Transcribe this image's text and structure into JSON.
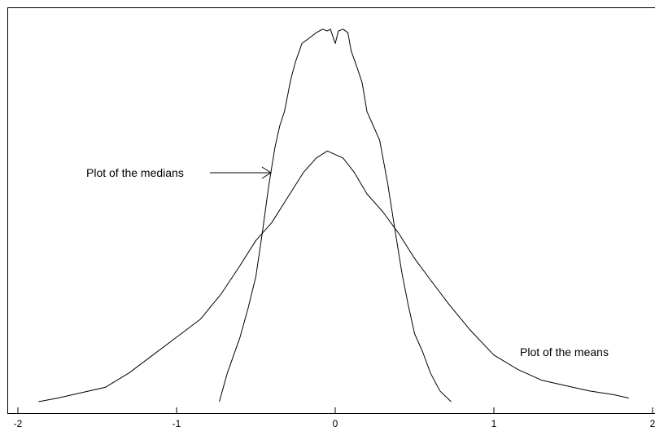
{
  "chart_data": {
    "type": "line",
    "xlim": [
      -2,
      2
    ],
    "ylim": [
      0,
      1.06
    ],
    "grid": false,
    "x_ticks": [
      "-2",
      "-1",
      "0",
      "1",
      "2"
    ],
    "series": [
      {
        "name": "Plot of the medians",
        "x": [
          -0.73,
          -0.68,
          -0.6,
          -0.55,
          -0.5,
          -0.46,
          -0.42,
          -0.38,
          -0.35,
          -0.32,
          -0.28,
          -0.25,
          -0.21,
          -0.15,
          -0.12,
          -0.08,
          -0.05,
          -0.03,
          0.0,
          0.02,
          0.05,
          0.08,
          0.1,
          0.14,
          0.17,
          0.2,
          0.24,
          0.28,
          0.33,
          0.38,
          0.42,
          0.46,
          0.5,
          0.55,
          0.6,
          0.66,
          0.73
        ],
        "y": [
          0.0,
          0.08,
          0.18,
          0.26,
          0.35,
          0.47,
          0.6,
          0.71,
          0.77,
          0.81,
          0.9,
          0.95,
          1.0,
          1.02,
          1.03,
          1.04,
          1.035,
          1.04,
          1.0,
          1.035,
          1.04,
          1.03,
          0.98,
          0.93,
          0.89,
          0.81,
          0.77,
          0.73,
          0.61,
          0.47,
          0.36,
          0.27,
          0.19,
          0.14,
          0.08,
          0.03,
          0.0
        ]
      },
      {
        "name": "Plot of the means",
        "x": [
          -1.87,
          -1.75,
          -1.6,
          -1.45,
          -1.3,
          -1.15,
          -1.0,
          -0.85,
          -0.72,
          -0.6,
          -0.5,
          -0.4,
          -0.3,
          -0.2,
          -0.12,
          -0.05,
          0.0,
          0.05,
          0.12,
          0.2,
          0.3,
          0.4,
          0.5,
          0.6,
          0.72,
          0.85,
          1.0,
          1.15,
          1.3,
          1.45,
          1.6,
          1.75,
          1.85
        ],
        "y": [
          0.0,
          0.01,
          0.025,
          0.04,
          0.08,
          0.13,
          0.18,
          0.23,
          0.3,
          0.38,
          0.45,
          0.5,
          0.57,
          0.64,
          0.68,
          0.7,
          0.69,
          0.68,
          0.64,
          0.58,
          0.53,
          0.47,
          0.4,
          0.34,
          0.27,
          0.2,
          0.13,
          0.09,
          0.06,
          0.045,
          0.03,
          0.02,
          0.01
        ]
      }
    ],
    "annotations": [
      {
        "text": "Plot of the medians",
        "arrow": true
      },
      {
        "text": "Plot of the means",
        "arrow": false
      }
    ]
  }
}
